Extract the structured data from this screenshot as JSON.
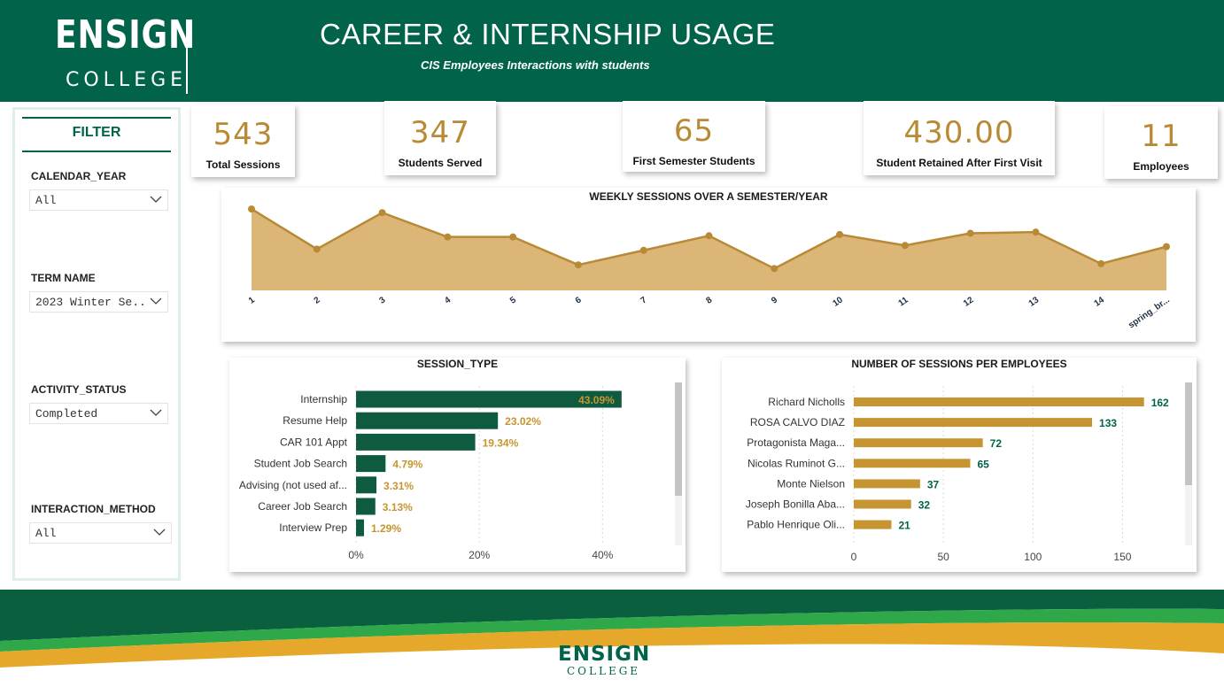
{
  "header": {
    "logo_ensign": "ENSIGN",
    "logo_college": "COLLEGE",
    "title": "CAREER & INTERNSHIP USAGE",
    "subtitle": "CIS Employees  Interactions with students"
  },
  "filter": {
    "title": "FILTER",
    "fields": [
      {
        "label": "CALENDAR_YEAR",
        "value": "All"
      },
      {
        "label": "TERM NAME",
        "value": "2023 Winter Se..."
      },
      {
        "label": "ACTIVITY_STATUS",
        "value": "Completed"
      },
      {
        "label": "INTERACTION_METHOD",
        "value": "All"
      }
    ]
  },
  "kpis": [
    {
      "value": "543",
      "label": "Total Sessions"
    },
    {
      "value": "347",
      "label": "Students Served"
    },
    {
      "value": "65",
      "label": "First Semester Students"
    },
    {
      "value": "430.00",
      "label": "Student Retained After First Visit"
    },
    {
      "value": "11",
      "label": "Employees"
    }
  ],
  "colors": {
    "brand_green": "#00634a",
    "gold": "#b88a35",
    "area_fill": "#dbb677",
    "bar_green": "#0e5b40",
    "bar_gold": "#c69531"
  },
  "chart_data": [
    {
      "type": "area",
      "title": "WEEKLY SESSIONS OVER A SEMESTER/YEAR",
      "categories": [
        "1",
        "2",
        "3",
        "4",
        "5",
        "6",
        "7",
        "8",
        "9",
        "10",
        "11",
        "12",
        "13",
        "14",
        "spring_br..."
      ],
      "values": [
        67,
        34,
        64,
        44,
        44,
        21,
        33,
        45,
        18,
        46,
        37,
        47,
        48,
        22,
        36
      ],
      "ylim": [
        0,
        70
      ],
      "grid": false
    },
    {
      "type": "bar",
      "orientation": "horizontal",
      "title": "SESSION_TYPE",
      "categories": [
        "Internship",
        "Resume Help",
        "CAR 101 Appt",
        "Student Job Search",
        "Advising (not used af...",
        "Career Job Search",
        "Interview Prep"
      ],
      "values": [
        43.09,
        23.02,
        19.34,
        4.79,
        3.31,
        3.13,
        1.29
      ],
      "labels": [
        "43.09%",
        "23.02%",
        "19.34%",
        "4.79%",
        "3.31%",
        "3.13%",
        "1.29%"
      ],
      "xticks": [
        "0%",
        "20%",
        "40%"
      ],
      "xlim": [
        0,
        48
      ]
    },
    {
      "type": "bar",
      "orientation": "horizontal",
      "title": "NUMBER OF SESSIONS PER EMPLOYEES",
      "categories": [
        "Richard Nicholls",
        "ROSA CALVO DIAZ",
        "Protagonista Maga...",
        "Nicolas Ruminot G...",
        "Monte Nielson",
        "Joseph Bonilla Aba...",
        "Pablo Henrique Oli..."
      ],
      "values": [
        162,
        133,
        72,
        65,
        37,
        32,
        21
      ],
      "xticks": [
        "0",
        "50",
        "100",
        "150"
      ],
      "xlim": [
        0,
        175
      ]
    }
  ],
  "footer": {
    "logo_ensign": "ENSIGN",
    "logo_college": "COLLEGE"
  }
}
